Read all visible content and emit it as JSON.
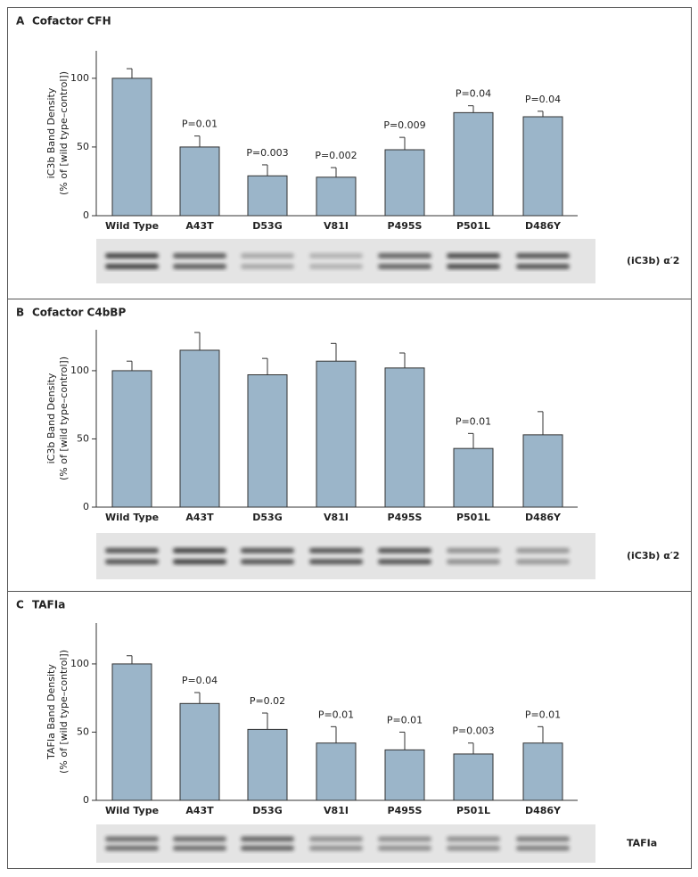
{
  "chart_data": [
    {
      "type": "bar",
      "panel": "A",
      "title": "Cofactor CFH",
      "y_label": [
        "iC3b Band Density",
        "(% of [wild type–control])"
      ],
      "categories": [
        "Wild Type",
        "A43T",
        "D53G",
        "V81I",
        "P495S",
        "P501L",
        "D486Y"
      ],
      "values": [
        100,
        50,
        29,
        28,
        48,
        75,
        72
      ],
      "errors": [
        7,
        8,
        8,
        7,
        9,
        5,
        4
      ],
      "annotations": [
        null,
        "P=0.01",
        "P=0.003",
        "P=0.002",
        "P=0.009",
        "P=0.04",
        "P=0.04"
      ],
      "blot_label": "(iC3b) α′2",
      "color": "#9bb5c9",
      "ylim": [
        0,
        120
      ],
      "yticks": [
        0,
        50,
        100
      ]
    },
    {
      "type": "bar",
      "panel": "B",
      "title": "Cofactor C4bBP",
      "y_label": [
        "iC3b Band Density",
        "(% of [wild type–control])"
      ],
      "categories": [
        "Wild Type",
        "A43T",
        "D53G",
        "V81I",
        "P495S",
        "P501L",
        "D486Y"
      ],
      "values": [
        100,
        115,
        97,
        107,
        102,
        43,
        53
      ],
      "errors": [
        7,
        13,
        12,
        13,
        11,
        11,
        17
      ],
      "annotations": [
        null,
        null,
        null,
        null,
        null,
        "P=0.01",
        null
      ],
      "blot_label": "(iC3b) α′2",
      "color": "#9bb5c9",
      "ylim": [
        0,
        130
      ],
      "yticks": [
        0,
        50,
        100
      ]
    },
    {
      "type": "bar",
      "panel": "C",
      "title": "TAFIa",
      "y_label": [
        "TAFIa Band Density",
        "(% of [wild type–control])"
      ],
      "categories": [
        "Wild Type",
        "A43T",
        "D53G",
        "V81I",
        "P495S",
        "P501L",
        "D486Y"
      ],
      "values": [
        100,
        71,
        52,
        42,
        37,
        34,
        42
      ],
      "errors": [
        6,
        8,
        12,
        12,
        13,
        8,
        12
      ],
      "annotations": [
        null,
        "P=0.04",
        "P=0.02",
        "P=0.01",
        "P=0.01",
        "P=0.003",
        "P=0.01"
      ],
      "blot_label": "TAFIa",
      "color": "#9bb5c9",
      "ylim": [
        0,
        130
      ],
      "yticks": [
        0,
        50,
        100
      ]
    }
  ]
}
